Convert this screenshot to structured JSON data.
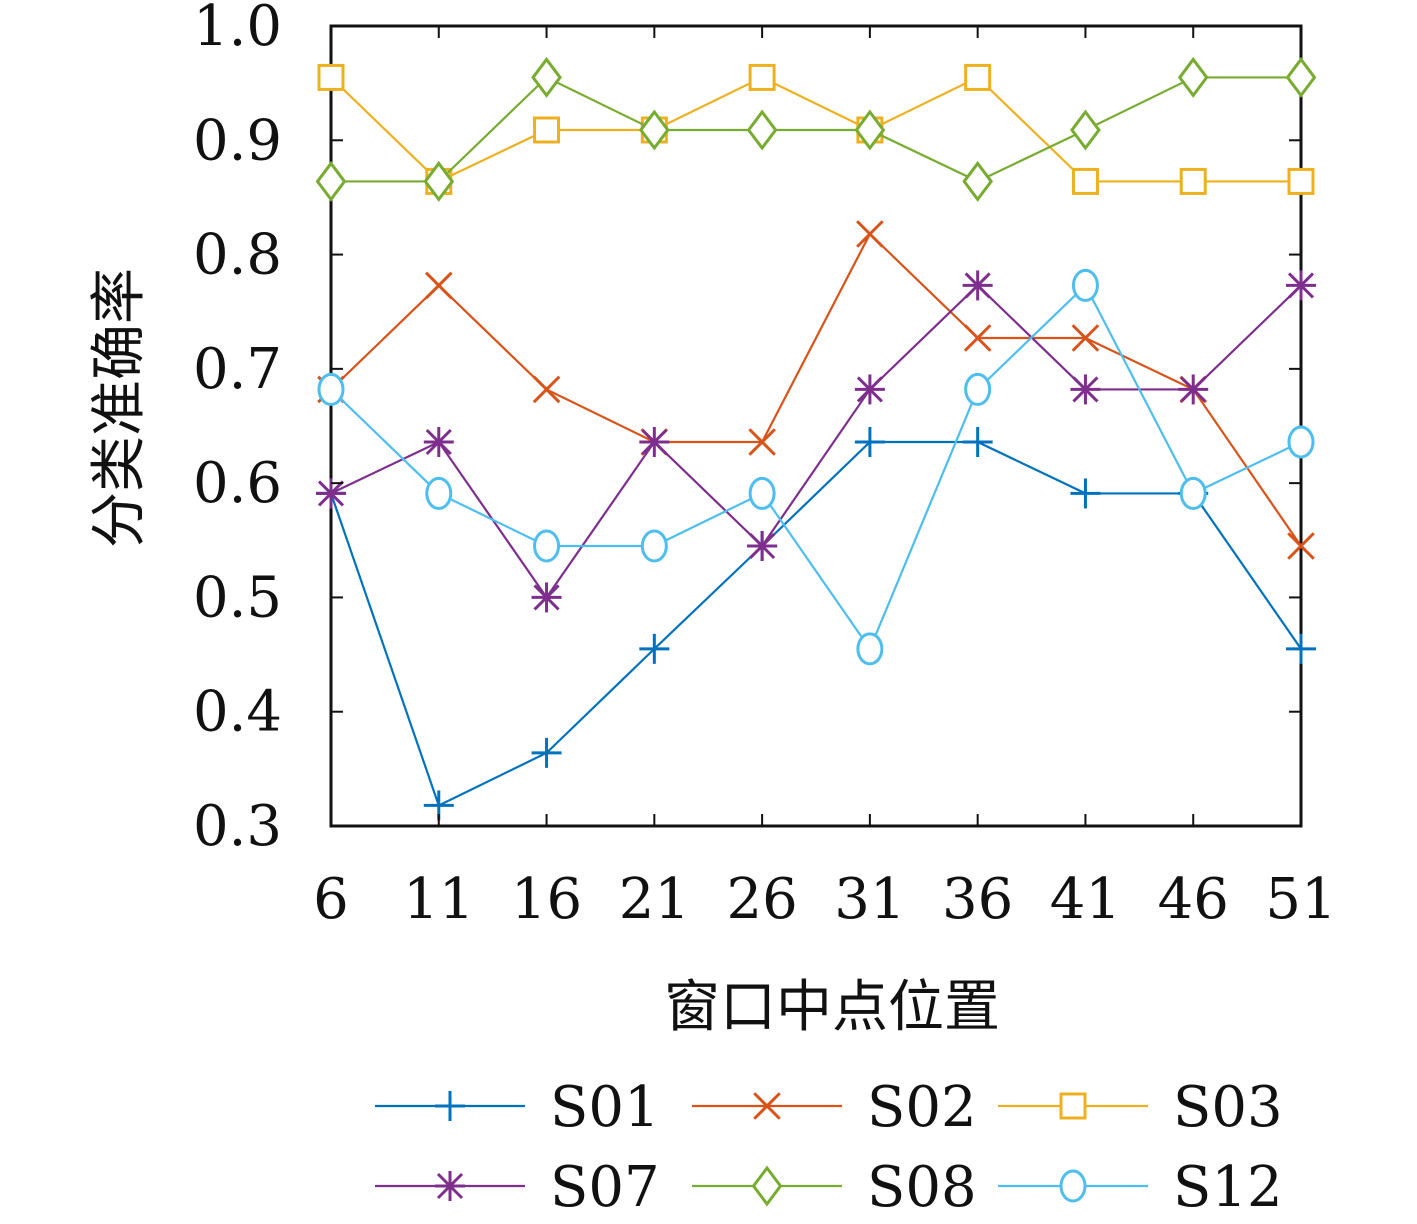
{
  "chart_data": {
    "type": "line",
    "xlabel": "窗口中点位置",
    "ylabel": "分类准确率",
    "x": [
      6,
      11,
      16,
      21,
      26,
      31,
      36,
      41,
      46,
      51
    ],
    "x_tick_labels": [
      "6",
      "11",
      "16",
      "21",
      "26",
      "31",
      "36",
      "41",
      "46",
      "51"
    ],
    "xlim": [
      6,
      51
    ],
    "ylim": [
      0.3,
      1.0
    ],
    "y_ticks": [
      0.3,
      0.4,
      0.5,
      0.6,
      0.7,
      0.8,
      0.9,
      1.0
    ],
    "y_tick_labels": [
      "0.3",
      "0.4",
      "0.5",
      "0.6",
      "0.7",
      "0.8",
      "0.9",
      "1.0"
    ],
    "grid": false,
    "legend_position": "bottom",
    "series": [
      {
        "name": "S01",
        "color": "#0072BD",
        "marker": "plus",
        "values": [
          0.591,
          0.318,
          0.364,
          0.455,
          0.545,
          0.636,
          0.636,
          0.591,
          0.591,
          0.455
        ]
      },
      {
        "name": "S02",
        "color": "#D95319",
        "marker": "x",
        "values": [
          0.682,
          0.773,
          0.682,
          0.636,
          0.636,
          0.818,
          0.727,
          0.727,
          0.682,
          0.545
        ]
      },
      {
        "name": "S03",
        "color": "#EDB120",
        "marker": "square",
        "values": [
          0.955,
          0.864,
          0.909,
          0.909,
          0.955,
          0.909,
          0.955,
          0.864,
          0.864,
          0.864
        ]
      },
      {
        "name": "S07",
        "color": "#7E2F8E",
        "marker": "asterisk",
        "values": [
          0.591,
          0.636,
          0.5,
          0.636,
          0.545,
          0.682,
          0.773,
          0.682,
          0.682,
          0.773
        ]
      },
      {
        "name": "S08",
        "color": "#77AC30",
        "marker": "diamond",
        "values": [
          0.864,
          0.864,
          0.955,
          0.909,
          0.909,
          0.909,
          0.864,
          0.909,
          0.955,
          0.955
        ]
      },
      {
        "name": "S12",
        "color": "#4DBEEE",
        "marker": "circle",
        "values": [
          0.682,
          0.591,
          0.545,
          0.545,
          0.591,
          0.455,
          0.682,
          0.773,
          0.591,
          0.636
        ]
      }
    ]
  }
}
